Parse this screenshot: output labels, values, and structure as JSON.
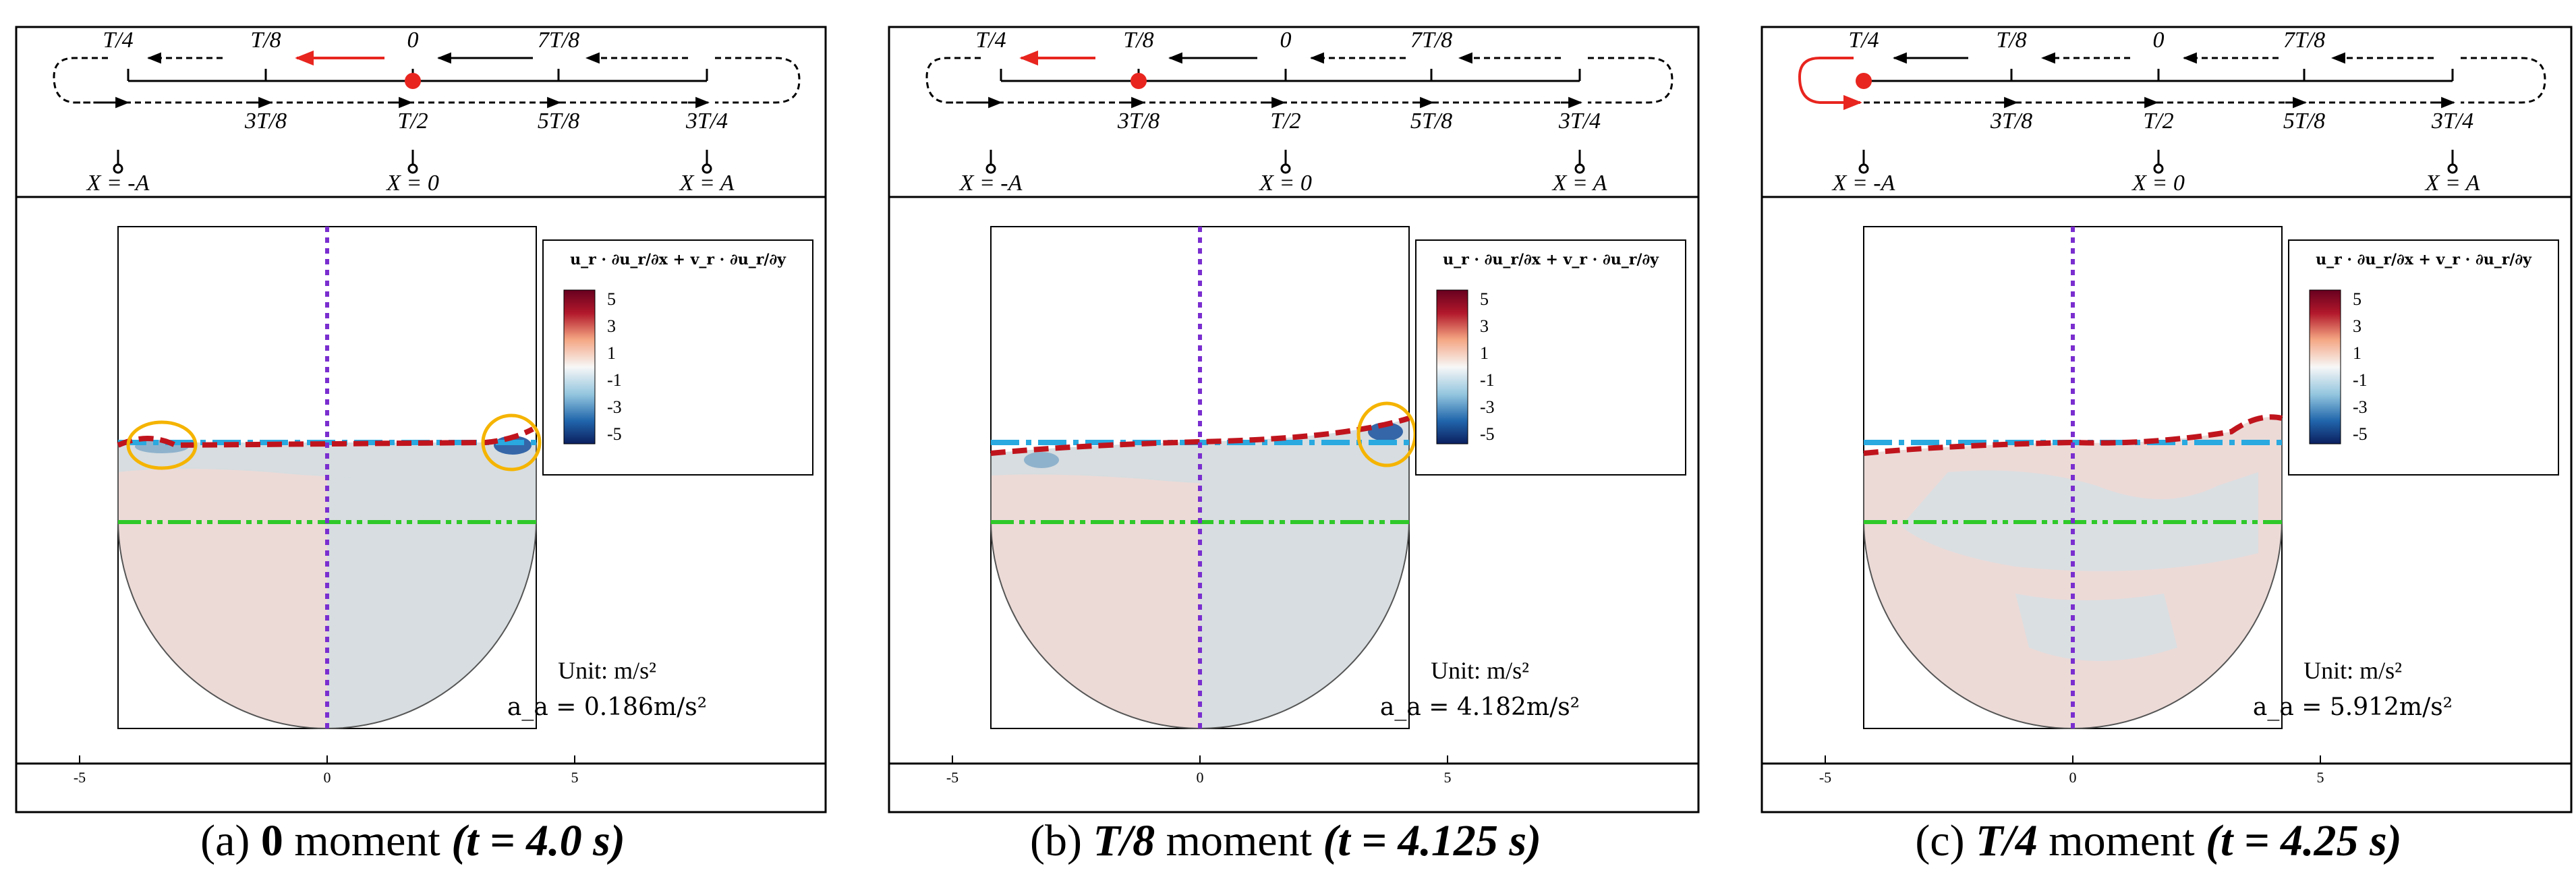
{
  "panels": [
    {
      "id": "a",
      "caption": {
        "letter": "(a)",
        "phase": "0",
        "moment": "moment",
        "time": "(t = 4.0 s)"
      },
      "schematic": {
        "top_labels": [
          "T/4",
          "T/8",
          "0",
          "7T/8"
        ],
        "bottom_labels": [
          "3T/8",
          "T/2",
          "5T/8",
          "3T/4"
        ],
        "positions": [
          "X = -A",
          "X = 0",
          "X = A"
        ],
        "highlight": "moving left from 0"
      },
      "legend": {
        "title": "u_r · ∂u_r/∂x + v_r · ∂u_r/∂y",
        "levels": [
          "5",
          "3",
          "1",
          "-1",
          "-3",
          "-5"
        ]
      },
      "unit": "Unit: m/s²",
      "acceleration": "a_a = 0.186m/s²",
      "axis_ticks": [
        "-5",
        "0",
        "5"
      ]
    },
    {
      "id": "b",
      "caption": {
        "letter": "(b)",
        "phase": "T/8",
        "moment": "moment",
        "time": "(t = 4.125 s)"
      },
      "schematic": {
        "top_labels": [
          "T/4",
          "T/8",
          "0",
          "7T/8"
        ],
        "bottom_labels": [
          "3T/8",
          "T/2",
          "5T/8",
          "3T/4"
        ],
        "positions": [
          "X = -A",
          "X = 0",
          "X = A"
        ],
        "highlight": "moving left from T/8"
      },
      "legend": {
        "title": "u_r · ∂u_r/∂x + v_r · ∂u_r/∂y",
        "levels": [
          "5",
          "3",
          "1",
          "-1",
          "-3",
          "-5"
        ]
      },
      "unit": "Unit: m/s²",
      "acceleration": "a_a = 4.182m/s²",
      "axis_ticks": [
        "-5",
        "0",
        "5"
      ]
    },
    {
      "id": "c",
      "caption": {
        "letter": "(c)",
        "phase": "T/4",
        "moment": "moment",
        "time": "(t = 4.25 s)"
      },
      "schematic": {
        "top_labels": [
          "T/4",
          "T/8",
          "0",
          "7T/8"
        ],
        "bottom_labels": [
          "3T/8",
          "T/2",
          "5T/8",
          "3T/4"
        ],
        "positions": [
          "X = -A",
          "X = 0",
          "X = A"
        ],
        "highlight": "turning at T/4"
      },
      "legend": {
        "title": "u_r · ∂u_r/∂x + v_r · ∂u_r/∂y",
        "levels": [
          "5",
          "3",
          "1",
          "-1",
          "-3",
          "-5"
        ]
      },
      "unit": "Unit: m/s²",
      "acceleration": "a_a = 5.912m/s²",
      "axis_ticks": [
        "-5",
        "0",
        "5"
      ]
    }
  ],
  "colors": {
    "dot": "#e8251f",
    "arrow_red": "#e8251f",
    "free_surface_dashed": "#c0141d",
    "initial_level": "#29a9e0",
    "green_line": "#2fc92a",
    "center_line": "#7a2ecf",
    "circle_highlight": "#f5b400",
    "tank_fill_pink": "#ecdad7",
    "tank_fill_grey": "#d7dde0"
  }
}
